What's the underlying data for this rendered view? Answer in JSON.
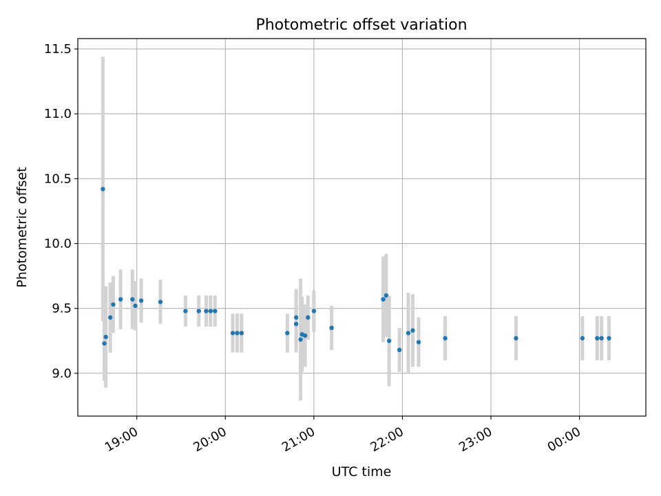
{
  "chart_data": {
    "type": "scatter",
    "title": "Photometric offset variation",
    "xlabel": "UTC time",
    "ylabel": "Photometric offset",
    "x_axis_type": "time",
    "x_range": [
      "18:20",
      "00:45"
    ],
    "ylim": [
      8.67,
      11.58
    ],
    "x_ticks": [
      {
        "time": "19:00",
        "label": "19:00"
      },
      {
        "time": "20:00",
        "label": "20:00"
      },
      {
        "time": "21:00",
        "label": "21:00"
      },
      {
        "time": "22:00",
        "label": "22:00"
      },
      {
        "time": "23:00",
        "label": "23:00"
      },
      {
        "time": "00:00",
        "label": "00:00"
      }
    ],
    "y_ticks": [
      9.0,
      9.5,
      10.0,
      10.5,
      11.0,
      11.5
    ],
    "y_tick_labels": [
      "9.0",
      "9.5",
      "10.0",
      "10.5",
      "11.0",
      "11.5"
    ],
    "grid": true,
    "point_color": "#1f77b4",
    "errorbar_color": "#d3d3d3",
    "points": [
      {
        "time": "18:37",
        "y": 10.42,
        "err": 1.02
      },
      {
        "time": "18:38",
        "y": 9.23,
        "err": 0.29
      },
      {
        "time": "18:39",
        "y": 9.28,
        "err": 0.39
      },
      {
        "time": "18:42",
        "y": 9.43,
        "err": 0.27
      },
      {
        "time": "18:44",
        "y": 9.53,
        "err": 0.22
      },
      {
        "time": "18:49",
        "y": 9.57,
        "err": 0.23
      },
      {
        "time": "18:57",
        "y": 9.57,
        "err": 0.23
      },
      {
        "time": "18:59",
        "y": 9.52,
        "err": 0.19
      },
      {
        "time": "19:03",
        "y": 9.56,
        "err": 0.17
      },
      {
        "time": "19:16",
        "y": 9.55,
        "err": 0.17
      },
      {
        "time": "19:33",
        "y": 9.48,
        "err": 0.12
      },
      {
        "time": "19:42",
        "y": 9.48,
        "err": 0.12
      },
      {
        "time": "19:47",
        "y": 9.48,
        "err": 0.12
      },
      {
        "time": "19:50",
        "y": 9.48,
        "err": 0.12
      },
      {
        "time": "19:53",
        "y": 9.48,
        "err": 0.12
      },
      {
        "time": "20:05",
        "y": 9.31,
        "err": 0.15
      },
      {
        "time": "20:08",
        "y": 9.31,
        "err": 0.15
      },
      {
        "time": "20:11",
        "y": 9.31,
        "err": 0.15
      },
      {
        "time": "20:42",
        "y": 9.31,
        "err": 0.15
      },
      {
        "time": "20:48",
        "y": 9.38,
        "err": 0.22
      },
      {
        "time": "20:48",
        "y": 9.43,
        "err": 0.22
      },
      {
        "time": "20:51",
        "y": 9.26,
        "err": 0.47
      },
      {
        "time": "20:52",
        "y": 9.3,
        "err": 0.29
      },
      {
        "time": "20:54",
        "y": 9.29,
        "err": 0.24
      },
      {
        "time": "20:56",
        "y": 9.43,
        "err": 0.17
      },
      {
        "time": "21:00",
        "y": 9.48,
        "err": 0.16
      },
      {
        "time": "21:12",
        "y": 9.35,
        "err": 0.17
      },
      {
        "time": "21:47",
        "y": 9.57,
        "err": 0.33
      },
      {
        "time": "21:49",
        "y": 9.6,
        "err": 0.32
      },
      {
        "time": "21:51",
        "y": 9.25,
        "err": 0.35
      },
      {
        "time": "21:58",
        "y": 9.18,
        "err": 0.17
      },
      {
        "time": "22:04",
        "y": 9.31,
        "err": 0.31
      },
      {
        "time": "22:07",
        "y": 9.33,
        "err": 0.28
      },
      {
        "time": "22:11",
        "y": 9.24,
        "err": 0.19
      },
      {
        "time": "22:29",
        "y": 9.27,
        "err": 0.17
      },
      {
        "time": "23:17",
        "y": 9.27,
        "err": 0.17
      },
      {
        "time": "00:02",
        "y": 9.27,
        "err": 0.17
      },
      {
        "time": "00:12",
        "y": 9.27,
        "err": 0.17
      },
      {
        "time": "00:15",
        "y": 9.27,
        "err": 0.17
      },
      {
        "time": "00:20",
        "y": 9.27,
        "err": 0.17
      }
    ]
  }
}
